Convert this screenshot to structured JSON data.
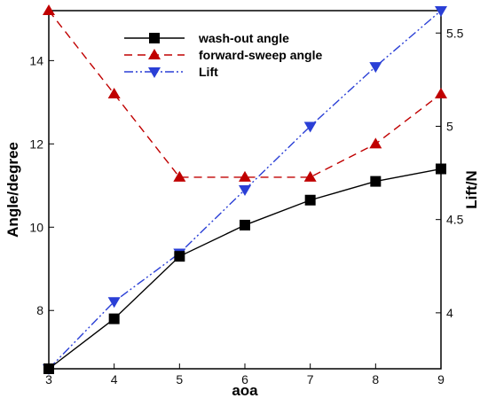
{
  "chart_data": {
    "type": "line",
    "xlabel": "aoa",
    "ylabel_left": "Angle/degree",
    "ylabel_right": "Lift/N",
    "x": [
      3,
      4,
      5,
      6,
      7,
      8,
      9
    ],
    "xlim": [
      3,
      9
    ],
    "ylim_left": [
      6.6,
      15.2
    ],
    "ylim_right": [
      3.7,
      5.62
    ],
    "xticks": [
      "3",
      "4",
      "5",
      "6",
      "7",
      "8",
      "9"
    ],
    "yticks_left": [
      "8",
      "10",
      "12",
      "14"
    ],
    "yticks_right": [
      "4",
      "4.5",
      "5",
      "5.5"
    ],
    "grid": false,
    "legend_position": "top-center",
    "series": [
      {
        "name": "wash-out angle",
        "axis": "left",
        "marker": "square",
        "line_style": "solid",
        "color": "#000000",
        "values": [
          6.6,
          7.8,
          9.3,
          10.05,
          10.65,
          11.1,
          11.4
        ]
      },
      {
        "name": "forward-sweep angle",
        "axis": "left",
        "marker": "triangle-up",
        "line_style": "dashed",
        "color": "#c00000",
        "values": [
          15.2,
          13.2,
          11.2,
          11.2,
          11.2,
          12.0,
          13.2
        ]
      },
      {
        "name": "Lift",
        "axis": "right",
        "marker": "triangle-down",
        "line_style": "dash-dot-dot",
        "color": "#2a3fd6",
        "values": [
          3.7,
          4.06,
          4.32,
          4.66,
          5.0,
          5.32,
          5.62
        ]
      }
    ]
  }
}
